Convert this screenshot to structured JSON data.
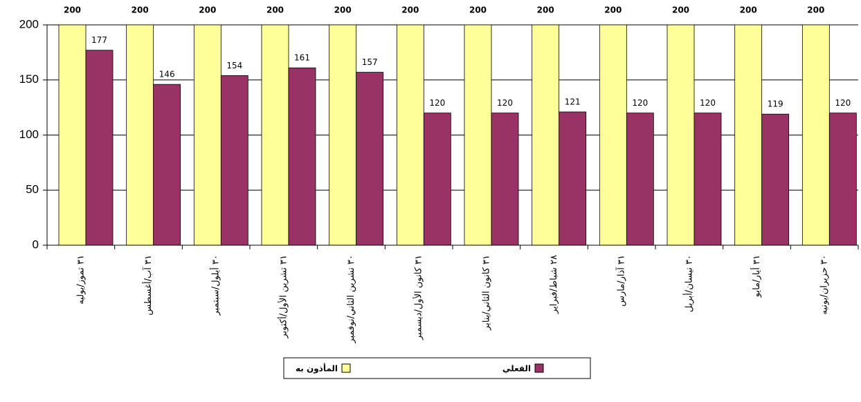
{
  "chart_data": {
    "type": "bar",
    "categories": [
      "٣١ تموز/يوليه",
      "٣١ آب/أغسطس",
      "٣٠ أيلول/سبتمبر",
      "٣١ تشرين الأول/أكتوبر",
      "٣٠ تشرين الثاني/نوفمبر",
      "٣١ كانون الأول/ديسمبر",
      "٣١ كانون الثاني/يناير",
      "٢٨ شباط/فبراير",
      "٣١ آذار/مارس",
      "٣٠ نيسان/أبريل",
      "٣١ أيار/مايو",
      "٣٠ حزيران/يونيه"
    ],
    "series": [
      {
        "name": "المأذون به",
        "color": "#ffff99",
        "values": [
          200,
          200,
          200,
          200,
          200,
          200,
          200,
          200,
          200,
          200,
          200,
          200
        ]
      },
      {
        "name": "الفعلي",
        "color": "#993366",
        "values": [
          177,
          146,
          154,
          161,
          157,
          120,
          120,
          121,
          120,
          120,
          119,
          120
        ]
      }
    ],
    "ylim": [
      0,
      200
    ],
    "yticks": [
      0,
      50,
      100,
      150,
      200
    ],
    "grid": true,
    "legend": "bottom"
  }
}
